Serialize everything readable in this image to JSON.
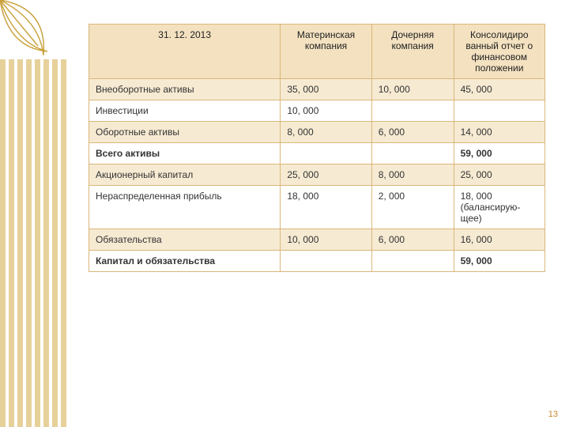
{
  "decor": {
    "leaf_stroke": "#c9a03a",
    "stripe_color": "#e7d19a",
    "stripe_bg": "#ffffff"
  },
  "page_number": "13",
  "table": {
    "type": "table",
    "border_color": "#d9b77a",
    "header_bg": "#f3e1c0",
    "band_bg": "#f6ead2",
    "plain_bg": "#ffffff",
    "font_size": 12,
    "columns": [
      {
        "label": "31. 12. 2013",
        "width_pct": 42,
        "align": "center"
      },
      {
        "label": "Материнская компания",
        "width_pct": 20,
        "align": "center"
      },
      {
        "label": "Дочерняя компания",
        "width_pct": 18,
        "align": "center"
      },
      {
        "label": "Консолидиро ванный отчет о финансовом положении",
        "width_pct": 20,
        "align": "center"
      }
    ],
    "rows": [
      {
        "band": true,
        "bold": false,
        "cells": [
          "Внеоборотные активы",
          "35, 000",
          "10, 000",
          "45, 000"
        ]
      },
      {
        "band": false,
        "bold": false,
        "cells": [
          "Инвестиции",
          "10, 000",
          "",
          ""
        ]
      },
      {
        "band": true,
        "bold": false,
        "cells": [
          "Оборотные активы",
          "8, 000",
          "6, 000",
          "14, 000"
        ]
      },
      {
        "band": false,
        "bold": true,
        "cells": [
          "Всего активы",
          "",
          "",
          "59, 000"
        ]
      },
      {
        "band": true,
        "bold": false,
        "cells": [
          "Акционерный капитал",
          "25, 000",
          "8, 000",
          "25, 000"
        ]
      },
      {
        "band": false,
        "bold": false,
        "cells": [
          "Нераспределенная прибыль",
          "18, 000",
          "2, 000",
          "18, 000 (балансирую­щее)"
        ]
      },
      {
        "band": true,
        "bold": false,
        "cells": [
          "Обязательства",
          "10, 000",
          "6, 000",
          "16, 000"
        ]
      },
      {
        "band": false,
        "bold": true,
        "cells": [
          "Капитал и обязательства",
          "",
          "",
          "59, 000"
        ]
      }
    ]
  }
}
